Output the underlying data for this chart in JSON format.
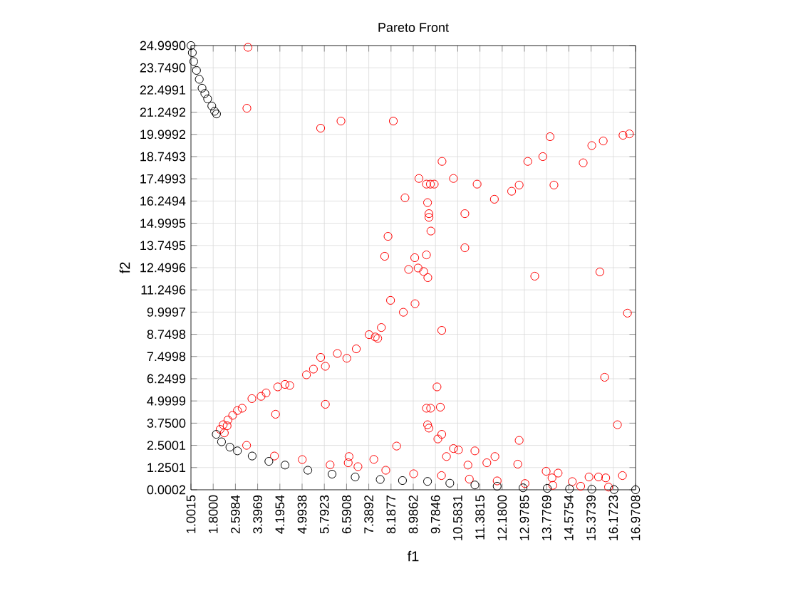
{
  "chart_data": {
    "type": "scatter",
    "title": "Pareto Front",
    "xlabel": "f1",
    "ylabel": "f2",
    "grid": true,
    "marker": "circle",
    "xlim": [
      1.0015,
      16.9708
    ],
    "ylim": [
      0.0002,
      24.999
    ],
    "xticks": [
      {
        "value": 1.0015,
        "label": "1.0015"
      },
      {
        "value": 1.8,
        "label": "1.8000"
      },
      {
        "value": 2.5984,
        "label": "2.5984"
      },
      {
        "value": 3.3969,
        "label": "3.3969"
      },
      {
        "value": 4.1954,
        "label": "4.1954"
      },
      {
        "value": 4.9938,
        "label": "4.9938"
      },
      {
        "value": 5.7923,
        "label": "5.7923"
      },
      {
        "value": 6.5908,
        "label": "6.5908"
      },
      {
        "value": 7.3892,
        "label": "7.3892"
      },
      {
        "value": 8.1877,
        "label": "8.1877"
      },
      {
        "value": 8.9862,
        "label": "8.9862"
      },
      {
        "value": 9.7846,
        "label": "9.7846"
      },
      {
        "value": 10.5831,
        "label": "10.5831"
      },
      {
        "value": 11.3815,
        "label": "11.3815"
      },
      {
        "value": 12.18,
        "label": "12.1800"
      },
      {
        "value": 12.9785,
        "label": "12.9785"
      },
      {
        "value": 13.7769,
        "label": "13.7769"
      },
      {
        "value": 14.5754,
        "label": "14.5754"
      },
      {
        "value": 15.3739,
        "label": "15.3739"
      },
      {
        "value": 16.1723,
        "label": "16.1723"
      },
      {
        "value": 16.9708,
        "label": "16.9708"
      }
    ],
    "yticks": [
      {
        "value": 0.0002,
        "label": "0.0002"
      },
      {
        "value": 1.2501,
        "label": "1.2501"
      },
      {
        "value": 2.5001,
        "label": "2.5001"
      },
      {
        "value": 3.75,
        "label": "3.7500"
      },
      {
        "value": 4.9999,
        "label": "4.9999"
      },
      {
        "value": 6.2499,
        "label": "6.2499"
      },
      {
        "value": 7.4998,
        "label": "7.4998"
      },
      {
        "value": 8.7498,
        "label": "8.7498"
      },
      {
        "value": 9.9997,
        "label": "9.9997"
      },
      {
        "value": 11.2496,
        "label": "11.2496"
      },
      {
        "value": 12.4996,
        "label": "12.4996"
      },
      {
        "value": 13.7495,
        "label": "13.7495"
      },
      {
        "value": 14.9995,
        "label": "14.9995"
      },
      {
        "value": 16.2494,
        "label": "16.2494"
      },
      {
        "value": 17.4993,
        "label": "17.4993"
      },
      {
        "value": 18.7493,
        "label": "18.7493"
      },
      {
        "value": 19.9992,
        "label": "19.9992"
      },
      {
        "value": 21.2492,
        "label": "21.2492"
      },
      {
        "value": 22.4991,
        "label": "22.4991"
      },
      {
        "value": 23.749,
        "label": "23.7490"
      },
      {
        "value": 24.999,
        "label": "24.9990"
      }
    ],
    "series": [
      {
        "color": "#ff0000",
        "x": [
          3.05,
          3.01,
          5.66,
          6.39,
          8.27,
          13.9,
          15.4,
          15.81,
          16.52,
          16.75,
          10.02,
          13.1,
          13.64,
          15.09,
          9.19,
          9.46,
          9.6,
          9.74,
          10.43,
          11.28,
          12.52,
          12.79,
          14.04,
          11.9,
          8.69,
          9.5,
          9.55,
          9.55,
          10.84,
          9.62,
          8.08,
          10.84,
          7.96,
          9.04,
          9.46,
          8.82,
          9.16,
          9.36,
          9.51,
          13.35,
          15.69,
          8.17,
          9.05,
          8.63,
          16.68,
          10.01,
          7.84,
          7.62,
          7.71,
          7.4,
          6.94,
          6.6,
          6.26,
          5.83,
          5.66,
          5.4,
          5.15,
          4.38,
          4.55,
          4.12,
          3.7,
          3.52,
          3.19,
          2.84,
          2.67,
          2.5,
          2.33,
          2.16,
          4.04,
          5.83,
          9.84,
          9.46,
          9.61,
          9.96,
          9.5,
          9.55,
          10.01,
          9.87,
          10.43,
          10.61,
          10.18,
          11.2,
          10.95,
          11.63,
          11.92,
          12.79,
          12.74,
          8.39,
          6.68,
          6.65,
          7.57,
          16.32,
          15.86,
          13.76,
          14.19,
          13.97,
          15.3,
          15.64,
          15.9,
          14.7,
          2.2,
          3.0,
          4.0,
          5.0,
          6.0,
          7.0,
          8.0,
          9.0,
          10.0,
          11.0,
          12.0,
          13.0,
          14.0,
          15.0,
          16.0,
          16.5,
          2.05,
          2.3
        ],
        "values": [
          24.9,
          21.47,
          20.35,
          20.75,
          20.75,
          19.87,
          19.37,
          19.63,
          19.95,
          20.03,
          18.48,
          18.48,
          18.75,
          18.4,
          17.52,
          17.2,
          17.2,
          17.2,
          17.52,
          17.2,
          16.8,
          17.15,
          17.15,
          16.35,
          16.43,
          16.16,
          15.54,
          15.33,
          15.54,
          14.56,
          14.26,
          13.62,
          13.14,
          13.06,
          13.22,
          12.4,
          12.48,
          12.28,
          11.94,
          12.02,
          12.26,
          10.66,
          10.47,
          9.99,
          9.94,
          8.97,
          9.13,
          8.6,
          8.52,
          8.73,
          7.93,
          7.4,
          7.67,
          6.95,
          7.45,
          6.79,
          6.47,
          5.93,
          5.87,
          5.79,
          5.45,
          5.26,
          5.13,
          4.59,
          4.46,
          4.19,
          3.93,
          3.66,
          4.25,
          4.81,
          5.79,
          4.59,
          4.59,
          4.65,
          3.66,
          3.47,
          3.12,
          2.86,
          2.32,
          2.24,
          1.87,
          2.19,
          1.39,
          1.52,
          1.87,
          2.78,
          1.44,
          2.46,
          1.87,
          1.52,
          1.71,
          3.66,
          6.33,
          1.04,
          0.94,
          0.67,
          0.72,
          0.72,
          0.67,
          0.46,
          3.2,
          2.5,
          1.9,
          1.7,
          1.4,
          1.3,
          1.1,
          0.9,
          0.8,
          0.6,
          0.5,
          0.35,
          0.25,
          0.2,
          0.15,
          0.8,
          3.4,
          3.6
        ]
      },
      {
        "color": "#000000",
        "x": [
          1.0015,
          1.05,
          1.1,
          1.2,
          1.3,
          1.4,
          1.5,
          1.6,
          1.75,
          1.85,
          1.92,
          1.91,
          2.1,
          2.4,
          2.67,
          3.2,
          3.8,
          4.38,
          5.2,
          6.07,
          6.9,
          7.8,
          8.6,
          9.5,
          10.3,
          11.2,
          12.0,
          12.93,
          13.8,
          14.6,
          15.4,
          16.2,
          16.9708
        ],
        "values": [
          24.999,
          24.6,
          24.1,
          23.6,
          23.1,
          22.6,
          22.3,
          22.0,
          21.6,
          21.3,
          21.15,
          3.12,
          2.7,
          2.4,
          2.19,
          1.9,
          1.6,
          1.39,
          1.1,
          0.88,
          0.72,
          0.58,
          0.52,
          0.47,
          0.37,
          0.27,
          0.2,
          0.11,
          0.08,
          0.05,
          0.03,
          0.01,
          0.0002
        ]
      }
    ]
  }
}
